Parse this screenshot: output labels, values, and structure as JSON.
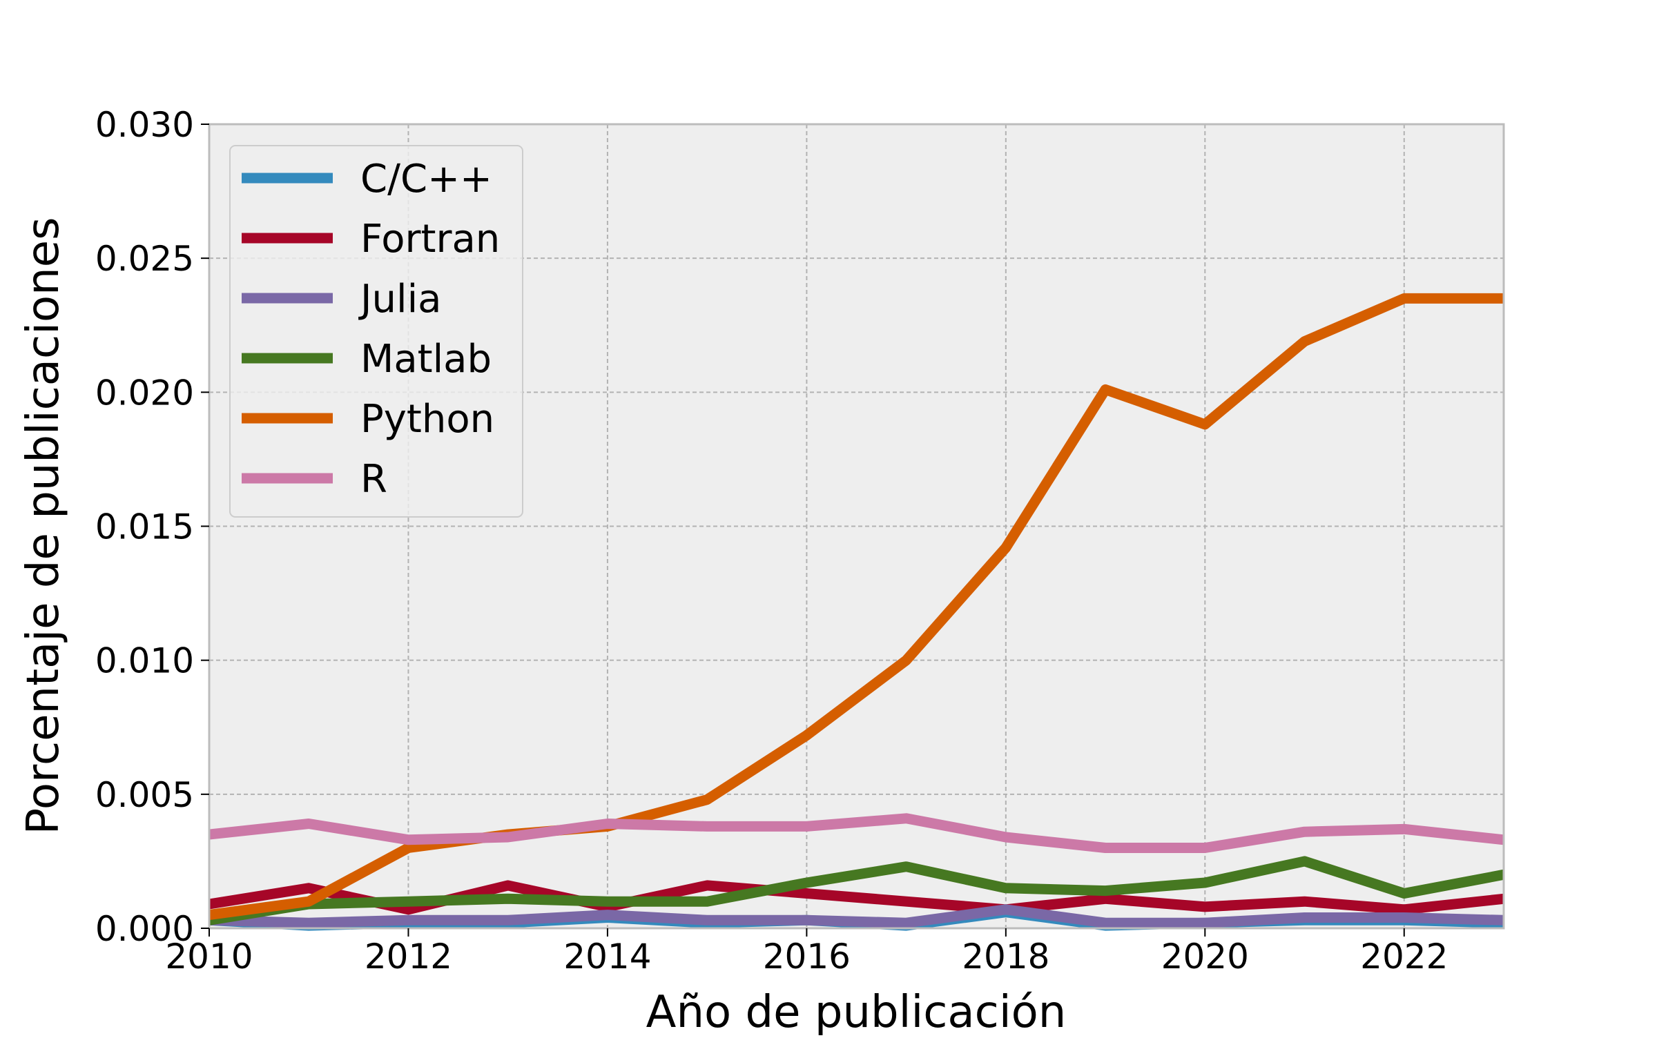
{
  "chart_data": {
    "type": "line",
    "title": "",
    "xlabel": "Año de publicación",
    "ylabel": "Porcentaje de publicaciones",
    "xlim": [
      2010,
      2023
    ],
    "ylim": [
      0.0,
      0.03
    ],
    "grid": true,
    "legend_position": "top-left",
    "x_ticks": [
      2010,
      2012,
      2014,
      2016,
      2018,
      2020,
      2022
    ],
    "x_tick_labels": [
      "2010",
      "2012",
      "2014",
      "2016",
      "2018",
      "2020",
      "2022"
    ],
    "y_ticks": [
      0.0,
      0.005,
      0.01,
      0.015,
      0.02,
      0.025,
      0.03
    ],
    "y_tick_labels": [
      "0.000",
      "0.005",
      "0.010",
      "0.015",
      "0.020",
      "0.025",
      "0.030"
    ],
    "x": [
      2010,
      2011,
      2012,
      2013,
      2014,
      2015,
      2016,
      2017,
      2018,
      2019,
      2020,
      2021,
      2022,
      2023
    ],
    "series": [
      {
        "name": "C/C++",
        "color": "#348ABD",
        "values": [
          0.0003,
          0.0001,
          0.0002,
          0.0002,
          0.0004,
          0.0002,
          0.0003,
          0.0001,
          0.0006,
          0.0001,
          0.0002,
          0.0003,
          0.0003,
          0.0002
        ]
      },
      {
        "name": "Fortran",
        "color": "#A60628",
        "values": [
          0.0009,
          0.0015,
          0.0007,
          0.0016,
          0.0008,
          0.0016,
          0.0013,
          0.001,
          0.0007,
          0.0011,
          0.0008,
          0.001,
          0.0007,
          0.0011
        ]
      },
      {
        "name": "Julia",
        "color": "#7A68A6",
        "values": [
          0.0003,
          0.0002,
          0.0003,
          0.0003,
          0.0005,
          0.0003,
          0.0003,
          0.0002,
          0.0007,
          0.0002,
          0.0002,
          0.0004,
          0.0004,
          0.0003
        ]
      },
      {
        "name": "Matlab",
        "color": "#467821",
        "values": [
          0.0003,
          0.0009,
          0.001,
          0.0011,
          0.001,
          0.001,
          0.0017,
          0.0023,
          0.0015,
          0.0014,
          0.0017,
          0.0025,
          0.0013,
          0.002
        ]
      },
      {
        "name": "Python",
        "color": "#D55E00",
        "values": [
          0.0005,
          0.001,
          0.003,
          0.0035,
          0.0038,
          0.0048,
          0.0072,
          0.01,
          0.0142,
          0.0201,
          0.0188,
          0.0219,
          0.0235,
          0.0235
        ]
      },
      {
        "name": "R",
        "color": "#CC79A7",
        "values": [
          0.0035,
          0.0039,
          0.0033,
          0.0034,
          0.0039,
          0.0038,
          0.0038,
          0.0041,
          0.0034,
          0.003,
          0.003,
          0.0036,
          0.0037,
          0.0033
        ]
      }
    ]
  },
  "style": {
    "plot_background": "#EEEEEE",
    "grid_color": "#B2B2B2",
    "frame_color": "#BCBCBC"
  }
}
